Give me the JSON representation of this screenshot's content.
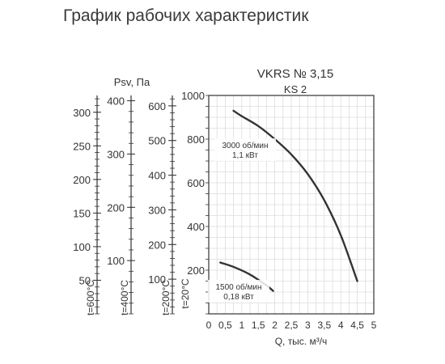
{
  "page_title": "График рабочих характеристик",
  "chart_data": {
    "type": "line",
    "title": "VKRS № 3,15",
    "subtitle": "KS 2",
    "xlabel": "Q, тыс. м³/ч",
    "ylabel": "Psv, Па",
    "xlim": [
      0,
      5
    ],
    "ylim": [
      0,
      1000
    ],
    "x_ticks": [
      "0",
      "0,5",
      "1",
      "1,5",
      "2",
      "2,5",
      "3",
      "3,5",
      "4",
      "4,5",
      "5"
    ],
    "y_ticks": [
      "200",
      "400",
      "600",
      "800",
      "1000"
    ],
    "grid": true,
    "series": [
      {
        "name": "3000 об/мин\n1,1 кВт",
        "label_lines": [
          "3000 об/мин",
          "1,1 кВт"
        ],
        "x": [
          0.75,
          1.0,
          1.5,
          2.0,
          2.5,
          3.0,
          3.5,
          4.0,
          4.5
        ],
        "y": [
          930,
          905,
          860,
          800,
          730,
          640,
          520,
          360,
          150
        ]
      },
      {
        "name": "1500 об/мин\n0,18 кВт",
        "label_lines": [
          "1500 об/мин",
          "0,18 кВт"
        ],
        "x": [
          0.35,
          0.75,
          1.25,
          1.75,
          1.95
        ],
        "y": [
          235,
          215,
          180,
          130,
          105
        ]
      }
    ],
    "temperature_scales": [
      {
        "label": "t=600°C",
        "ticks": [
          50,
          100,
          150,
          200,
          250,
          300
        ],
        "tick_labels": [
          "50",
          "100",
          "150",
          "200",
          "250",
          "300"
        ],
        "max": 325
      },
      {
        "label": "t=400°C",
        "ticks": [
          100,
          200,
          300,
          400
        ],
        "tick_labels": [
          "100",
          "200",
          "300",
          "400"
        ],
        "max": 410
      },
      {
        "label": "t=200°C",
        "ticks": [
          100,
          200,
          300,
          400,
          500,
          600
        ],
        "tick_labels": [
          "100",
          "200",
          "300",
          "400",
          "500",
          "600"
        ],
        "max": 630
      },
      {
        "label": "t=20°C",
        "ticks": [
          200,
          400,
          600,
          800,
          1000
        ],
        "tick_labels": [
          "200",
          "400",
          "600",
          "800",
          "1000"
        ],
        "max": 1000
      }
    ]
  }
}
